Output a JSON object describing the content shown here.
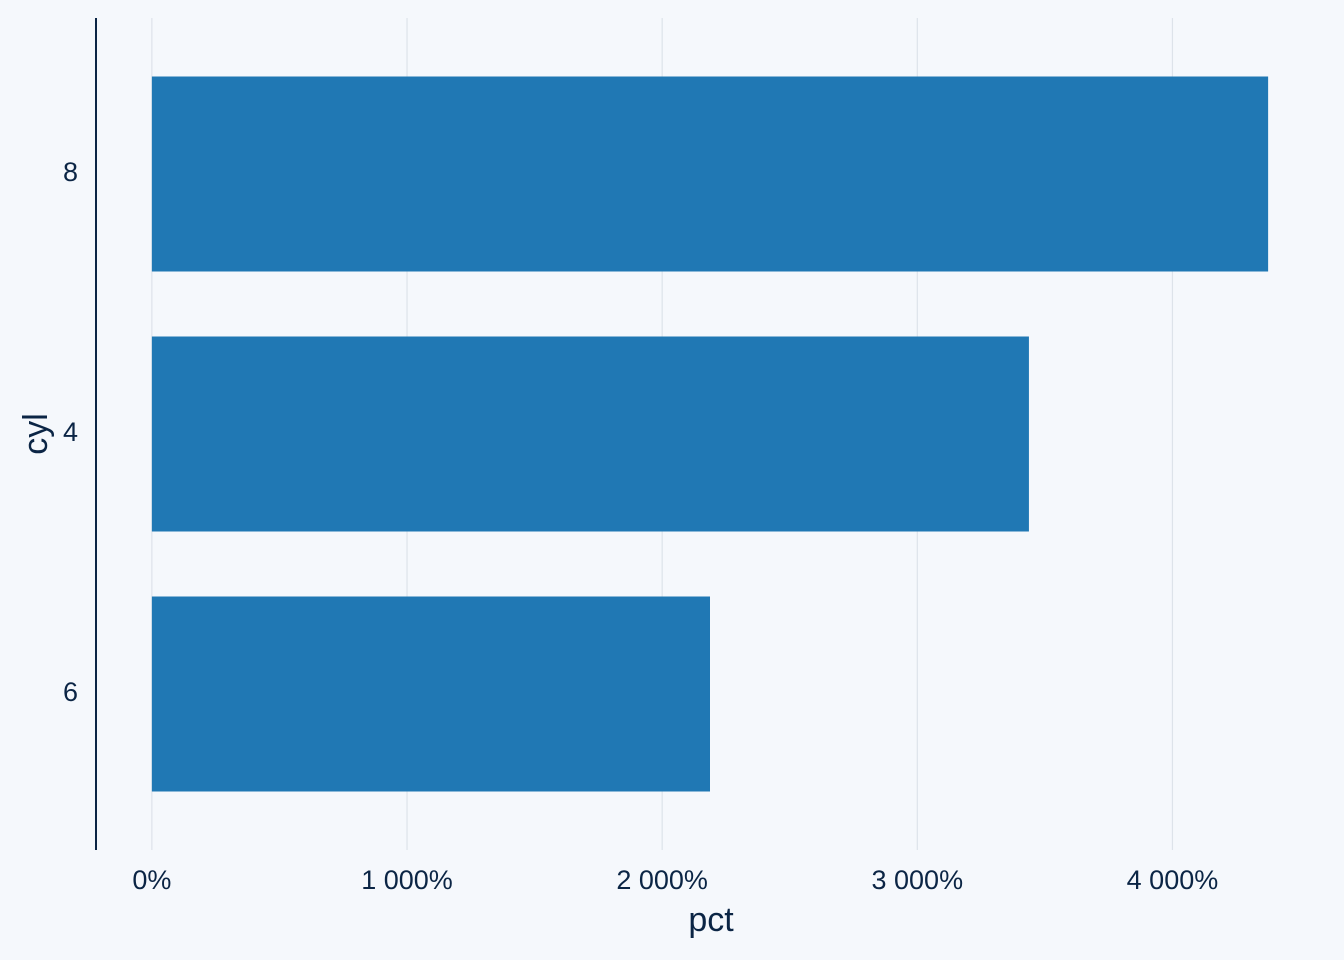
{
  "chart_data": {
    "type": "hbar",
    "categories": [
      "8",
      "4",
      "6"
    ],
    "values": [
      4375,
      3437.5,
      2187.5
    ],
    "color": "#2078b4",
    "x_label": "pct",
    "y_label": "cyl",
    "xlim": [
      -219,
      4594
    ],
    "xticks": [
      {
        "value": 0,
        "label": "0%"
      },
      {
        "value": 1000,
        "label": "1 000%"
      },
      {
        "value": 2000,
        "label": "2 000%"
      },
      {
        "value": 3000,
        "label": "3 000%"
      },
      {
        "value": 4000,
        "label": "4 000%"
      }
    ],
    "grid": true
  }
}
